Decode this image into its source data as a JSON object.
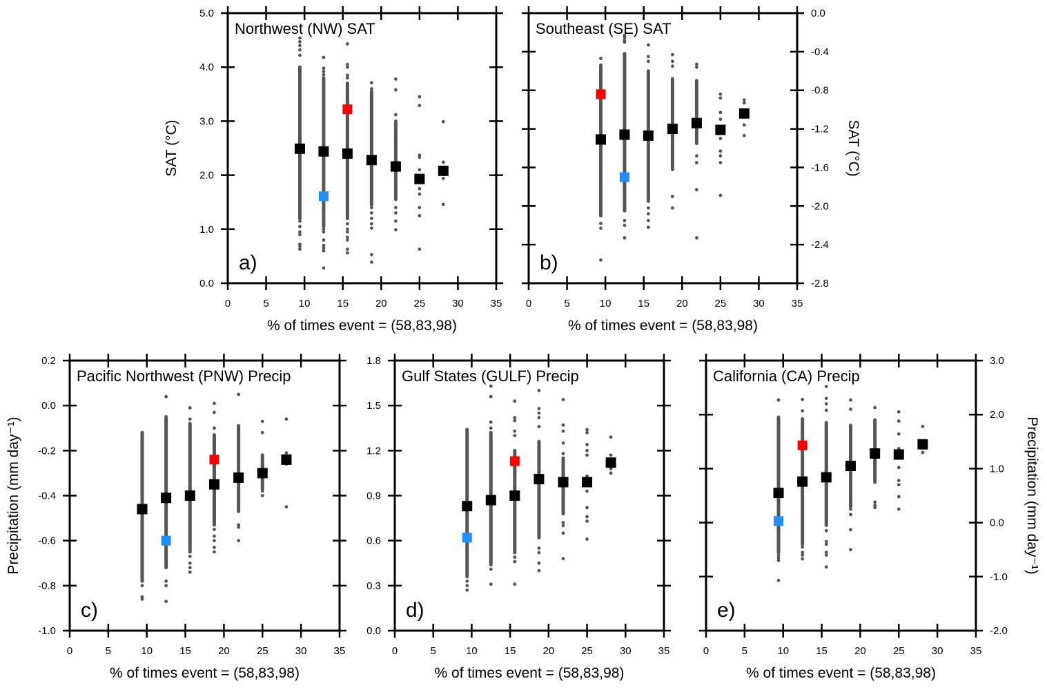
{
  "figure": {
    "colors": {
      "ensemble_dots": "#555555",
      "mean_marker": "#000000",
      "red_marker": "#ff0000",
      "blue_marker": "#1e90ff"
    }
  },
  "chart_data": [
    {
      "id": "a",
      "type": "scatter",
      "title": "Northwest (NW) SAT",
      "panel_label": "a)",
      "xlabel": "% of times event = (58,83,98)",
      "ylabel": "SAT (°C)",
      "ylabel_side": "left",
      "xlim": [
        0,
        35
      ],
      "ylim": [
        0.0,
        5.0
      ],
      "xticks": [
        0,
        5,
        10,
        15,
        20,
        25,
        30,
        35
      ],
      "yticks": [
        0.0,
        1.0,
        2.0,
        3.0,
        4.0,
        5.0
      ],
      "ytick_labels": [
        "0.0",
        "1.0",
        "2.0",
        "3.0",
        "4.0",
        "5.0"
      ],
      "show_ytick_labels": true,
      "x": [
        9.4,
        12.5,
        15.6,
        18.75,
        21.9,
        25.0,
        28.1
      ],
      "mean": [
        2.49,
        2.44,
        2.4,
        2.28,
        2.16,
        1.93,
        2.08
      ],
      "red": {
        "x": 15.6,
        "y": 3.22
      },
      "blue": {
        "x": 12.5,
        "y": 1.61
      },
      "dense_range": [
        [
          1.2,
          4.0
        ],
        [
          1.05,
          3.8
        ],
        [
          1.2,
          3.7
        ],
        [
          1.45,
          3.55
        ],
        [
          1.55,
          3.0
        ],
        null,
        null
      ],
      "outliers": [
        [
          4.54,
          4.47,
          4.4,
          4.32,
          4.22,
          1.15,
          1.05,
          0.95,
          0.9,
          0.72,
          0.68,
          0.63
        ],
        [
          4.18,
          3.98,
          3.92,
          3.86,
          1.0,
          0.95,
          0.8,
          0.7,
          0.65,
          0.6,
          0.28
        ],
        [
          4.43,
          4.05,
          4.0,
          3.85,
          3.8,
          1.1,
          1.0,
          0.95,
          0.85,
          0.8,
          0.63,
          0.56
        ],
        [
          3.71,
          3.6,
          1.4,
          1.3,
          1.2,
          1.1,
          1.02,
          0.53,
          0.39
        ],
        [
          3.78,
          3.58,
          3.12,
          2.9,
          2.7,
          2.6,
          1.55,
          1.4,
          1.3,
          1.15,
          0.99
        ],
        [
          3.45,
          3.29,
          2.37,
          2.33,
          2.1,
          1.75,
          1.65,
          1.4,
          1.25,
          0.63
        ],
        [
          2.99,
          2.24,
          1.94,
          1.46
        ]
      ]
    },
    {
      "id": "b",
      "type": "scatter",
      "title": "Southeast (SE) SAT",
      "panel_label": "b)",
      "xlabel": "% of times event = (58,83,98)",
      "ylabel": "SAT (°C)",
      "ylabel_side": "right",
      "xlim": [
        0,
        35
      ],
      "ylim": [
        -2.8,
        0.0
      ],
      "xticks": [
        0,
        5,
        10,
        15,
        20,
        25,
        30,
        35
      ],
      "yticks": [
        -2.8,
        -2.4,
        -2.0,
        -1.6,
        -1.2,
        -0.8,
        -0.4,
        0.0
      ],
      "ytick_labels": [
        "-2.8",
        "-2.4",
        "-2.0",
        "-1.6",
        "-1.2",
        "-0.8",
        "-0.4",
        "0.0"
      ],
      "show_ytick_labels": true,
      "x": [
        9.4,
        12.5,
        15.6,
        18.75,
        21.9,
        25.0,
        28.1
      ],
      "mean": [
        -1.31,
        -1.26,
        -1.27,
        -1.2,
        -1.14,
        -1.21,
        -1.04
      ],
      "red": {
        "x": 9.4,
        "y": -0.84
      },
      "blue": {
        "x": 12.5,
        "y": -1.7
      },
      "dense_range": [
        [
          -2.1,
          -0.54
        ],
        [
          -2.05,
          -0.42
        ],
        [
          -1.95,
          -0.6
        ],
        [
          -1.62,
          -0.68
        ],
        [
          -1.35,
          -0.7
        ],
        null,
        null
      ],
      "outliers": [
        [
          -0.47,
          -2.18,
          -2.23,
          -2.56
        ],
        [
          -0.23,
          -0.25,
          -0.28,
          -0.3,
          -2.15,
          -2.2,
          -2.33
        ],
        [
          -0.33,
          -0.45,
          -0.5,
          -2.02,
          -2.08,
          -2.15,
          -2.22
        ],
        [
          -0.43,
          -0.5,
          -0.55,
          -1.9,
          -2.02
        ],
        [
          -0.53,
          -0.56,
          -1.48,
          -1.55,
          -1.83,
          -2.33
        ],
        [
          -0.84,
          -0.88,
          -1.03,
          -1.1,
          -1.3,
          -1.43,
          -1.48,
          -1.55,
          -1.89
        ],
        [
          -0.9,
          -0.93,
          -1.16,
          -1.27
        ]
      ]
    },
    {
      "id": "c",
      "type": "scatter",
      "title": "Pacific Northwest (PNW) Precip",
      "panel_label": "c)",
      "xlabel": "% of times event = (58,83,98)",
      "ylabel": "Precipitation (mm day⁻¹)",
      "ylabel_side": "left",
      "xlim": [
        0,
        35
      ],
      "ylim": [
        -1.0,
        0.2
      ],
      "xticks": [
        0,
        5,
        10,
        15,
        20,
        25,
        30,
        35
      ],
      "yticks": [
        -1.0,
        -0.8,
        -0.6,
        -0.4,
        -0.2,
        0.0,
        0.2
      ],
      "ytick_labels": [
        "-1.0",
        "-0.8",
        "-0.6",
        "-0.4",
        "-0.2",
        "0.0",
        "0.2"
      ],
      "show_ytick_labels": true,
      "x": [
        9.4,
        12.5,
        15.6,
        18.75,
        21.9,
        25.0,
        28.1
      ],
      "mean": [
        -0.46,
        -0.41,
        -0.4,
        -0.35,
        -0.32,
        -0.3,
        -0.24
      ],
      "red": {
        "x": 18.75,
        "y": -0.24
      },
      "blue": {
        "x": 12.5,
        "y": -0.6
      },
      "dense_range": [
        [
          -0.78,
          -0.12
        ],
        [
          -0.72,
          -0.05
        ],
        [
          -0.65,
          -0.08
        ],
        [
          -0.53,
          -0.13
        ],
        [
          -0.47,
          -0.09
        ],
        [
          -0.37,
          -0.22
        ],
        null
      ],
      "outliers": [
        [
          -0.8,
          -0.85,
          -0.86
        ],
        [
          0.04,
          -0.78,
          -0.8,
          -0.87
        ],
        [
          -0.01,
          -0.06,
          -0.67,
          -0.7,
          -0.72,
          -0.74
        ],
        [
          0.01,
          -0.03,
          -0.1,
          -0.55,
          -0.58,
          -0.6,
          -0.63,
          -0.65
        ],
        [
          0.05,
          -0.53,
          -0.54,
          -0.6
        ],
        [
          -0.07,
          -0.12,
          -0.38,
          -0.4
        ],
        [
          -0.06,
          -0.21,
          -0.26,
          -0.45
        ]
      ]
    },
    {
      "id": "d",
      "type": "scatter",
      "title": "Gulf States (GULF) Precip",
      "panel_label": "d)",
      "xlabel": "% of times event = (58,83,98)",
      "ylabel": "",
      "ylabel_side": "left",
      "xlim": [
        0,
        35
      ],
      "ylim": [
        0.0,
        1.8
      ],
      "xticks": [
        0,
        5,
        10,
        15,
        20,
        25,
        30,
        35
      ],
      "yticks": [
        0.0,
        0.3,
        0.6,
        0.9,
        1.2,
        1.5,
        1.8
      ],
      "ytick_labels": [
        "0.0",
        "0.3",
        "0.6",
        "0.9",
        "1.2",
        "1.5",
        "1.8"
      ],
      "show_ytick_labels": true,
      "x": [
        9.4,
        12.5,
        15.6,
        18.75,
        21.9,
        25.0,
        28.1
      ],
      "mean": [
        0.83,
        0.87,
        0.9,
        1.01,
        0.99,
        0.99,
        1.12
      ],
      "red": {
        "x": 15.6,
        "y": 1.13
      },
      "blue": {
        "x": 9.4,
        "y": 0.62
      },
      "dense_range": [
        [
          0.36,
          1.34
        ],
        [
          0.44,
          1.32
        ],
        [
          0.52,
          1.2
        ],
        [
          0.62,
          1.26
        ],
        [
          0.78,
          1.15
        ],
        null,
        null
      ],
      "outliers": [
        [
          0.33,
          0.3,
          0.27
        ],
        [
          1.63,
          1.56,
          1.39,
          1.35,
          0.41,
          0.31
        ],
        [
          1.53,
          1.42,
          1.4,
          1.33,
          1.3,
          0.49,
          0.46,
          0.31
        ],
        [
          1.6,
          1.48,
          1.45,
          1.42,
          1.36,
          0.55,
          0.52,
          0.45,
          0.4
        ],
        [
          1.54,
          1.37,
          1.33,
          1.25,
          1.18,
          0.72,
          0.7,
          0.65,
          0.48
        ],
        [
          1.34,
          1.32,
          1.24,
          1.2,
          1.17,
          1.03,
          0.93,
          0.82,
          0.76,
          0.73,
          0.61
        ],
        [
          1.29,
          1.17,
          1.08,
          1.05
        ]
      ]
    },
    {
      "id": "e",
      "type": "scatter",
      "title": "California (CA) Precip",
      "panel_label": "e)",
      "xlabel": "% of times event = (58,83,98)",
      "ylabel": "Precipitation (mm day⁻¹)",
      "ylabel_side": "right",
      "xlim": [
        0,
        35
      ],
      "ylim": [
        -2.0,
        3.0
      ],
      "xticks": [
        0,
        5,
        10,
        15,
        20,
        25,
        30,
        35
      ],
      "yticks": [
        -2.0,
        -1.0,
        0.0,
        1.0,
        2.0,
        3.0
      ],
      "ytick_labels": [
        "-2.0",
        "-1.0",
        "0.0",
        "1.0",
        "2.0",
        "3.0"
      ],
      "show_ytick_labels": true,
      "x": [
        9.4,
        12.5,
        15.6,
        18.75,
        21.9,
        25.0,
        28.1
      ],
      "mean": [
        0.55,
        0.76,
        0.84,
        1.05,
        1.28,
        1.26,
        1.45
      ],
      "red": {
        "x": 12.5,
        "y": 1.43
      },
      "blue": {
        "x": 9.4,
        "y": 0.03
      },
      "dense_range": [
        [
          -0.55,
          1.95
        ],
        [
          -0.4,
          1.92
        ],
        [
          -0.05,
          1.85
        ],
        [
          0.3,
          1.8
        ],
        [
          0.75,
          1.9
        ],
        null,
        null
      ],
      "outliers": [
        [
          2.27,
          -0.6,
          -0.65,
          -0.7,
          -1.07
        ],
        [
          2.28,
          2.07,
          -0.45,
          -0.55,
          -0.6,
          -0.67
        ],
        [
          2.52,
          2.3,
          2.2,
          2.08,
          -0.15,
          -0.35,
          -0.4,
          -0.55,
          -0.6,
          -0.82
        ],
        [
          2.27,
          2.1,
          0.25,
          0.15,
          -0.13,
          -0.5
        ],
        [
          2.13,
          0.38,
          0.32,
          0.28
        ],
        [
          2.05,
          1.88,
          1.64,
          1.37,
          1.02,
          0.78,
          0.7,
          0.48,
          0.25
        ],
        [
          1.78,
          1.3
        ]
      ]
    }
  ]
}
